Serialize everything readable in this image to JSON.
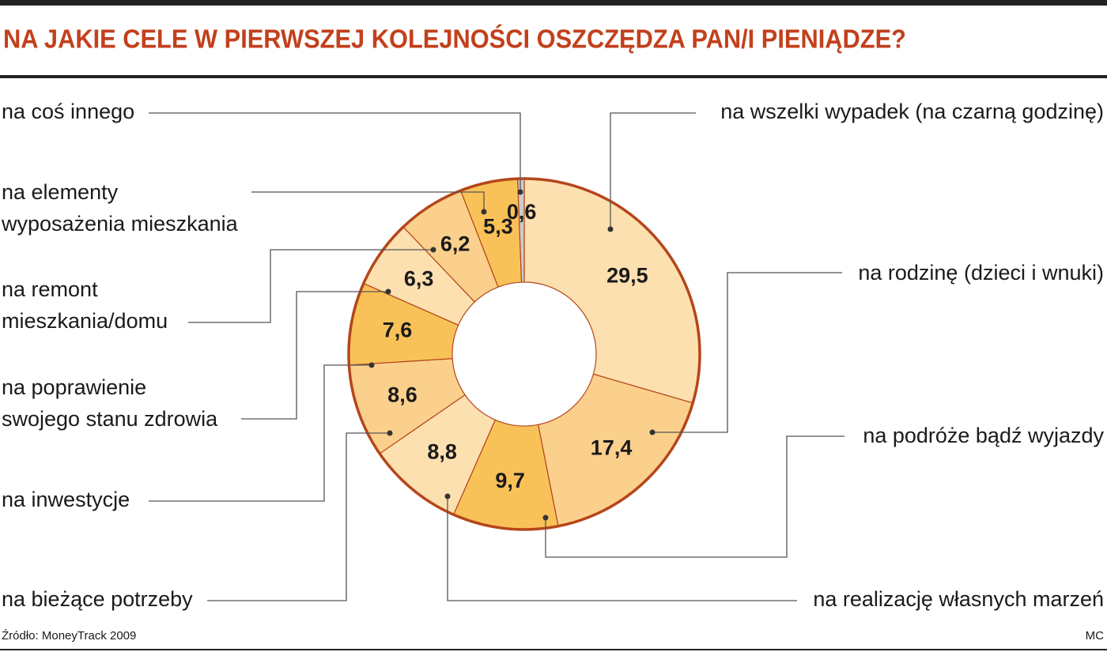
{
  "chart_data": {
    "type": "donut",
    "title": "NA JAKIE CELE W PIERWSZEJ KOLEJNOŚCI OSZCZĘDZA PAN/I PIENIĄDZE?",
    "categories": [
      "na wszelki wypadek (na czarną godzinę)",
      "na rodzinę (dzieci i wnuki)",
      "na podróże bądź wyjazdy",
      "na realizację własnych marzeń",
      "na bieżące potrzeby",
      "na inwestycje",
      "na poprawienie\nswojego stanu zdrowia",
      "na remont\nmieszkania/domu",
      "na elementy\nwyposażenia mieszkania",
      "na coś innego"
    ],
    "values": [
      29.5,
      17.4,
      9.7,
      8.8,
      8.6,
      7.6,
      6.3,
      6.2,
      5.3,
      0.6
    ],
    "value_labels": [
      "29,5",
      "17,4",
      "9,7",
      "8,8",
      "8,6",
      "7,6",
      "6,3",
      "6,2",
      "5,3",
      "0,6"
    ],
    "colors": [
      "#fde0b0",
      "#fbd08c",
      "#f9c259",
      "#fde0b0",
      "#fbd08c",
      "#f9c259",
      "#fde0b0",
      "#fbd08c",
      "#f9c259",
      "#cccccc"
    ],
    "source": "Źródło: MoneyTrack 2009",
    "credit": "MC"
  }
}
